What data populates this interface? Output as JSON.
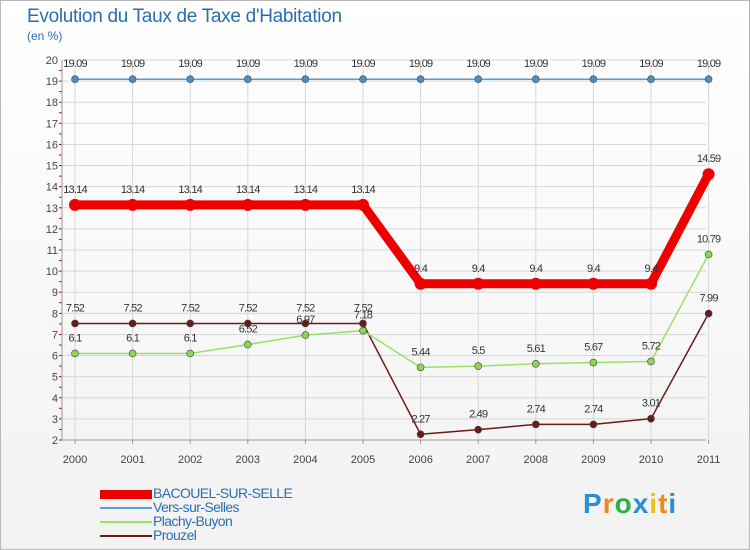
{
  "colors": {
    "grid": "#d7d7d7",
    "axis": "#999999",
    "tick_text": "#444444",
    "title": "#2a6eb0",
    "tick_mark": "#cc0000"
  },
  "chart_data": {
    "type": "line",
    "title": "Evolution du Taux de Taxe d'Habitation",
    "ylabel": "(en %)",
    "xlabel": "",
    "ylim": [
      2,
      20
    ],
    "categories": [
      "2000",
      "2001",
      "2002",
      "2003",
      "2004",
      "2005",
      "2006",
      "2007",
      "2008",
      "2009",
      "2010",
      "2011"
    ],
    "y_ticks": [
      2,
      3,
      4,
      5,
      6,
      7,
      8,
      9,
      10,
      11,
      12,
      13,
      14,
      15,
      16,
      17,
      18,
      19,
      20
    ],
    "legend_position": "bottom-left",
    "series": [
      {
        "name": "BACOUEL-SUR-SELLE",
        "color": "#ee0000",
        "values": [
          13.14,
          13.14,
          13.14,
          13.14,
          13.14,
          13.14,
          9.4,
          9.4,
          9.4,
          9.4,
          9.4,
          14.59
        ],
        "labels": [
          "13.14",
          "13.14",
          "13.14",
          "13.14",
          "13.14",
          "13.14",
          "9.4",
          "9.4",
          "9.4",
          "9.4",
          "9.4",
          "14.59"
        ]
      },
      {
        "name": "Vers-sur-Selles",
        "color": "#5b9bd0",
        "values": [
          19.09,
          19.09,
          19.09,
          19.09,
          19.09,
          19.09,
          19.09,
          19.09,
          19.09,
          19.09,
          19.09,
          19.09
        ],
        "labels": [
          "19.09",
          "19.09",
          "19.09",
          "19.09",
          "19.09",
          "19.09",
          "19.09",
          "19.09",
          "19.09",
          "19.09",
          "19.09",
          "19.09"
        ]
      },
      {
        "name": "Plachy-Buyon",
        "color": "#99e066",
        "values": [
          6.1,
          6.1,
          6.1,
          6.52,
          6.97,
          7.18,
          5.44,
          5.5,
          5.61,
          5.67,
          5.72,
          10.79
        ],
        "labels": [
          "6.1",
          "6.1",
          "6.1",
          "6.52",
          "6.97",
          "7.18",
          "5.44",
          "5.5",
          "5.61",
          "5.67",
          "5.72",
          "10.79"
        ]
      },
      {
        "name": "Prouzel",
        "color": "#6b1a1a",
        "values": [
          7.52,
          7.52,
          7.52,
          7.52,
          7.52,
          7.52,
          2.27,
          2.49,
          2.74,
          2.74,
          3.01,
          7.99
        ],
        "labels": [
          "7.52",
          "7.52",
          "7.52",
          "7.52",
          "7.52",
          "7.52",
          "2.27",
          "2.49",
          "2.74",
          "2.74",
          "3.01",
          "7.99"
        ]
      }
    ]
  },
  "logo": {
    "letters": [
      "P",
      "r",
      "o",
      "x",
      "i",
      "t",
      "i"
    ],
    "colors": [
      "#2a8fd0",
      "#f08a1c",
      "#2ab04a",
      "#2a8fd0",
      "#e8c21c",
      "#f08a1c",
      "#2a8fd0"
    ]
  }
}
